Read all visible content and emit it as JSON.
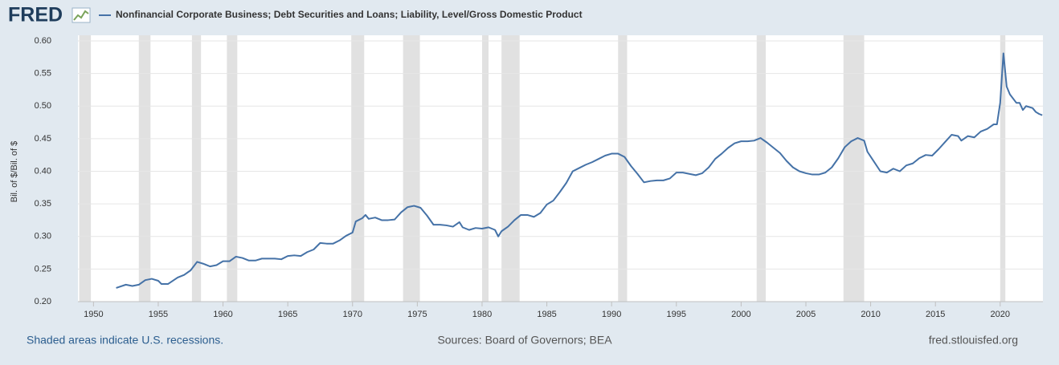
{
  "logo": "FRED",
  "chart_data": {
    "type": "line",
    "y_label": "Bil. of $/Bil. of $",
    "note": "Shaded areas indicate U.S. recessions.",
    "source": "Sources: Board of Governors; BEA",
    "site": "fred.stlouisfed.org",
    "xlim": [
      1948.8,
      2023.3
    ],
    "ylim": [
      0.2,
      0.6
    ],
    "xticks": [
      1950,
      1955,
      1960,
      1965,
      1970,
      1975,
      1980,
      1985,
      1990,
      1995,
      2000,
      2005,
      2010,
      2015,
      2020
    ],
    "yticks": [
      {
        "value": 0.2,
        "label": "0.20"
      },
      0.25,
      {
        "value": 0.3,
        "label": "0.30"
      },
      0.35,
      {
        "value": 0.4,
        "label": "0.40"
      },
      0.45,
      {
        "value": 0.5,
        "label": "0.50"
      },
      0.55,
      {
        "value": 0.6,
        "label": "0.60"
      }
    ],
    "grid": true,
    "recession_color": "#e1e1e1",
    "recessions": [
      [
        1948.9,
        1949.8
      ],
      [
        1953.5,
        1954.4
      ],
      [
        1957.6,
        1958.3
      ],
      [
        1960.3,
        1961.1
      ],
      [
        1969.9,
        1970.9
      ],
      [
        1973.9,
        1975.2
      ],
      [
        1980.0,
        1980.5
      ],
      [
        1981.5,
        1982.9
      ],
      [
        1990.5,
        1991.2
      ],
      [
        2001.2,
        2001.9
      ],
      [
        2007.9,
        2009.5
      ],
      [
        2020.0,
        2020.4
      ]
    ],
    "x": [
      1951.75,
      1952.5,
      1953,
      1953.5,
      1954,
      1954.5,
      1955,
      1955.25,
      1955.75,
      1956.5,
      1957,
      1957.5,
      1958,
      1958.5,
      1959,
      1959.5,
      1960,
      1960.5,
      1961,
      1961.5,
      1962,
      1962.5,
      1963,
      1963.5,
      1964,
      1964.5,
      1965,
      1965.5,
      1966,
      1966.5,
      1967,
      1967.5,
      1968,
      1968.5,
      1969,
      1969.5,
      1970,
      1970.25,
      1970.75,
      1971,
      1971.25,
      1971.75,
      1972.25,
      1972.75,
      1973.25,
      1973.75,
      1974.25,
      1974.75,
      1975.25,
      1975.75,
      1976.25,
      1976.75,
      1977.25,
      1977.75,
      1978.25,
      1978.5,
      1979,
      1979.5,
      1980,
      1980.5,
      1981,
      1981.25,
      1981.5,
      1982,
      1982.5,
      1983,
      1983.5,
      1984,
      1984.5,
      1985,
      1985.5,
      1986,
      1986.5,
      1987,
      1987.5,
      1988,
      1988.5,
      1989,
      1989.5,
      1990,
      1990.5,
      1991,
      1991.5,
      1992,
      1992.5,
      1993,
      1993.5,
      1994,
      1994.5,
      1995,
      1995.5,
      1996,
      1996.5,
      1997,
      1997.5,
      1998,
      1998.5,
      1999,
      1999.5,
      2000,
      2000.5,
      2001,
      2001.5,
      2002,
      2002.5,
      2003,
      2003.5,
      2004,
      2004.5,
      2005,
      2005.5,
      2006,
      2006.5,
      2007,
      2007.5,
      2008,
      2008.5,
      2009,
      2009.5,
      2009.75,
      2010.25,
      2010.75,
      2011.25,
      2011.75,
      2012.25,
      2012.75,
      2013.25,
      2013.75,
      2014.25,
      2014.75,
      2015.25,
      2015.75,
      2016.25,
      2016.75,
      2017,
      2017.5,
      2018,
      2018.5,
      2019,
      2019.5,
      2019.75,
      2020,
      2020.25,
      2020.5,
      2020.75,
      2021.25,
      2021.5,
      2021.75,
      2022,
      2022.5,
      2022.75,
      2023,
      2023.25
    ],
    "series": [
      {
        "name": "Nonfinancial Corporate Business; Debt Securities and Loans; Liability, Level/Gross Domestic Product",
        "color": "#4572a7",
        "values": [
          0.221,
          0.226,
          0.224,
          0.226,
          0.233,
          0.235,
          0.232,
          0.227,
          0.227,
          0.237,
          0.241,
          0.248,
          0.261,
          0.258,
          0.254,
          0.256,
          0.262,
          0.262,
          0.269,
          0.267,
          0.263,
          0.263,
          0.266,
          0.266,
          0.266,
          0.265,
          0.27,
          0.271,
          0.27,
          0.276,
          0.28,
          0.29,
          0.289,
          0.289,
          0.294,
          0.301,
          0.306,
          0.323,
          0.328,
          0.333,
          0.327,
          0.329,
          0.325,
          0.325,
          0.326,
          0.337,
          0.345,
          0.347,
          0.344,
          0.332,
          0.318,
          0.318,
          0.317,
          0.315,
          0.322,
          0.314,
          0.31,
          0.313,
          0.312,
          0.314,
          0.31,
          0.3,
          0.308,
          0.315,
          0.325,
          0.333,
          0.333,
          0.33,
          0.336,
          0.349,
          0.355,
          0.368,
          0.382,
          0.4,
          0.405,
          0.41,
          0.414,
          0.419,
          0.424,
          0.427,
          0.427,
          0.422,
          0.408,
          0.396,
          0.383,
          0.385,
          0.386,
          0.386,
          0.389,
          0.398,
          0.398,
          0.396,
          0.394,
          0.397,
          0.406,
          0.419,
          0.427,
          0.436,
          0.443,
          0.446,
          0.446,
          0.447,
          0.451,
          0.444,
          0.436,
          0.428,
          0.416,
          0.406,
          0.4,
          0.397,
          0.395,
          0.395,
          0.398,
          0.406,
          0.42,
          0.437,
          0.446,
          0.451,
          0.447,
          0.43,
          0.415,
          0.4,
          0.398,
          0.404,
          0.4,
          0.409,
          0.412,
          0.42,
          0.425,
          0.424,
          0.434,
          0.445,
          0.456,
          0.454,
          0.447,
          0.454,
          0.452,
          0.461,
          0.465,
          0.472,
          0.472,
          0.505,
          0.581,
          0.53,
          0.518,
          0.505,
          0.505,
          0.494,
          0.5,
          0.497,
          0.491,
          0.488,
          0.486
        ]
      }
    ]
  }
}
